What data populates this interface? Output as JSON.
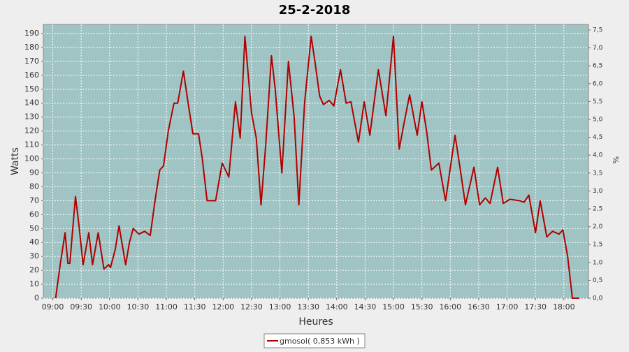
{
  "chart_data": {
    "type": "line",
    "title": "25-2-2018",
    "x_label": "Heures",
    "y_label": "Watts",
    "y2_label": "%",
    "grid": true,
    "legend": "bottom",
    "xlim": [
      530,
      1106
    ],
    "xticks": [
      {
        "value": 540,
        "label": "09:00"
      },
      {
        "value": 570,
        "label": "09:30"
      },
      {
        "value": 600,
        "label": "10:00"
      },
      {
        "value": 630,
        "label": "10:30"
      },
      {
        "value": 660,
        "label": "11:00"
      },
      {
        "value": 690,
        "label": "11:30"
      },
      {
        "value": 720,
        "label": "12:00"
      },
      {
        "value": 750,
        "label": "12:30"
      },
      {
        "value": 780,
        "label": "13:00"
      },
      {
        "value": 810,
        "label": "13:30"
      },
      {
        "value": 840,
        "label": "14:00"
      },
      {
        "value": 870,
        "label": "14:30"
      },
      {
        "value": 900,
        "label": "15:00"
      },
      {
        "value": 930,
        "label": "15:30"
      },
      {
        "value": 960,
        "label": "16:00"
      },
      {
        "value": 990,
        "label": "16:30"
      },
      {
        "value": 1020,
        "label": "17:00"
      },
      {
        "value": 1050,
        "label": "17:30"
      },
      {
        "value": 1080,
        "label": "18:00"
      }
    ],
    "ylim": [
      0,
      196.5
    ],
    "yticks": [
      0,
      10,
      20,
      30,
      40,
      50,
      60,
      70,
      80,
      90,
      100,
      110,
      120,
      130,
      140,
      150,
      160,
      170,
      180,
      190
    ],
    "y2lim": [
      0,
      7.656
    ],
    "y2ticks": [
      {
        "value": 0,
        "label": "0,0"
      },
      {
        "value": 0.5,
        "label": "0,5"
      },
      {
        "value": 1,
        "label": "1,0"
      },
      {
        "value": 1.5,
        "label": "1,5"
      },
      {
        "value": 2,
        "label": "2,0"
      },
      {
        "value": 2.5,
        "label": "2,5"
      },
      {
        "value": 3,
        "label": "3,0"
      },
      {
        "value": 3.5,
        "label": "3,5"
      },
      {
        "value": 4,
        "label": "4,0"
      },
      {
        "value": 4.5,
        "label": "4,5"
      },
      {
        "value": 5,
        "label": "5,0"
      },
      {
        "value": 5.5,
        "label": "5,5"
      },
      {
        "value": 6,
        "label": "6,0"
      },
      {
        "value": 6.5,
        "label": "6,5"
      },
      {
        "value": 7,
        "label": "7,0"
      },
      {
        "value": 7.5,
        "label": "7,5"
      }
    ],
    "x": [
      543,
      548,
      553,
      556,
      558,
      564,
      568,
      572,
      578,
      582,
      588,
      594,
      599,
      601,
      606,
      610,
      617,
      621,
      625,
      631,
      637,
      643,
      648,
      653,
      657,
      662,
      668,
      672,
      678,
      683,
      688,
      694,
      698,
      703,
      712,
      719,
      726,
      733,
      738,
      743,
      750,
      755,
      760,
      765,
      771,
      775,
      782,
      789,
      795,
      800,
      806,
      813,
      817,
      822,
      826,
      832,
      837,
      844,
      850,
      855,
      863,
      869,
      875,
      884,
      892,
      900,
      906,
      911,
      917,
      925,
      930,
      935,
      940,
      948,
      955,
      965,
      970,
      976,
      985,
      991,
      997,
      1002,
      1010,
      1016,
      1023,
      1033,
      1038,
      1043,
      1050,
      1055,
      1062,
      1068,
      1075,
      1079,
      1084,
      1089,
      1096
    ],
    "series": [
      {
        "name": "gmosol( 0,853 kWh )",
        "color": "#b00000",
        "values": [
          0,
          25,
          47,
          25,
          25,
          73,
          50,
          24,
          47,
          24,
          47,
          21,
          24,
          22,
          35,
          52,
          24,
          40,
          50,
          46,
          48,
          45,
          70,
          92,
          95,
          120,
          140,
          140,
          163,
          140,
          118,
          118,
          100,
          70,
          70,
          97,
          87,
          141,
          115,
          188,
          133,
          115,
          67,
          110,
          174,
          150,
          90,
          170,
          130,
          67,
          140,
          188,
          170,
          145,
          139,
          142,
          138,
          164,
          140,
          141,
          112,
          141,
          117,
          164,
          131,
          188,
          107,
          125,
          146,
          117,
          141,
          120,
          92,
          97,
          70,
          117,
          95,
          67,
          94,
          67,
          72,
          68,
          94,
          68,
          71,
          70,
          69,
          74,
          47,
          70,
          44,
          48,
          46,
          49,
          30,
          0,
          0
        ]
      }
    ]
  }
}
